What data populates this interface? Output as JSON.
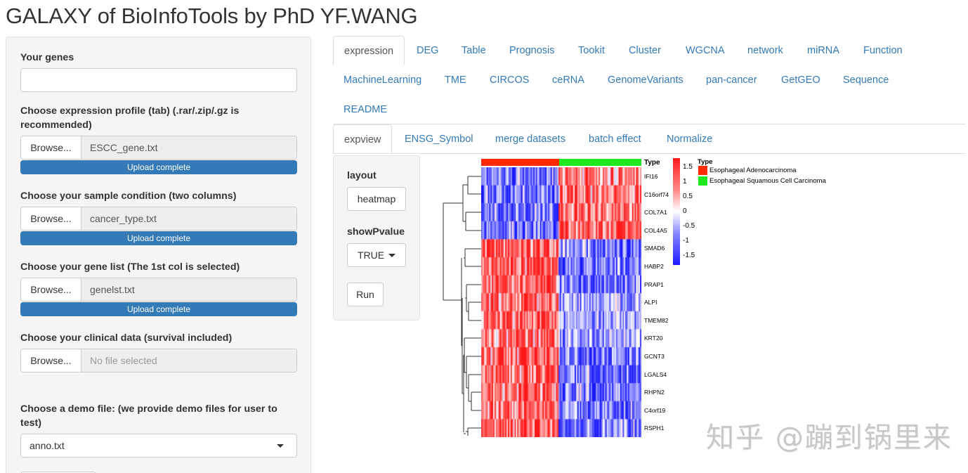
{
  "app": {
    "title": "GALAXY of BioInfoTools by PhD YF.WANG"
  },
  "sidebar": {
    "genes_label": "Your genes",
    "genes_value": "",
    "expression": {
      "label": "Choose expression profile (tab) (.rar/.zip/.gz is recommended)",
      "browse": "Browse...",
      "file": "ESCC_gene.txt",
      "status": "Upload complete"
    },
    "condition": {
      "label": "Choose your sample condition (two columns)",
      "browse": "Browse...",
      "file": "cancer_type.txt",
      "status": "Upload complete"
    },
    "genelist": {
      "label": "Choose your gene list (The 1st col is selected)",
      "browse": "Browse...",
      "file": "genelst.txt",
      "status": "Upload complete"
    },
    "clinical": {
      "label": "Choose your clinical data (survival included)",
      "browse": "Browse...",
      "file": "No file selected"
    },
    "demo": {
      "label": "Choose a demo file: (we provide demo files for user to test)",
      "selected": "anno.txt"
    }
  },
  "tabs": {
    "main": [
      {
        "label": "expression",
        "active": true
      },
      {
        "label": "DEG"
      },
      {
        "label": "Table"
      },
      {
        "label": "Prognosis"
      },
      {
        "label": "Tookit"
      },
      {
        "label": "Cluster"
      },
      {
        "label": "WGCNA"
      },
      {
        "label": "network"
      },
      {
        "label": "miRNA"
      },
      {
        "label": "Function"
      },
      {
        "label": "MachineLearning"
      },
      {
        "label": "TME"
      },
      {
        "label": "CIRCOS"
      },
      {
        "label": "ceRNA"
      },
      {
        "label": "GenomeVariants"
      },
      {
        "label": "pan-cancer"
      },
      {
        "label": "GetGEO"
      },
      {
        "label": "Sequence"
      },
      {
        "label": "README"
      }
    ],
    "sub": [
      {
        "label": "expview",
        "active": true
      },
      {
        "label": "ENSG_Symbol"
      },
      {
        "label": "merge datasets"
      },
      {
        "label": "batch effect"
      },
      {
        "label": "Normalize"
      }
    ]
  },
  "controls": {
    "layout_label": "layout",
    "layout_value": "heatmap",
    "pvalue_label": "showPvalue",
    "pvalue_value": "TRUE",
    "run_label": "Run"
  },
  "heatmap": {
    "annotation_title": "Type",
    "genes": [
      "IFI16",
      "C16orf74",
      "COL7A1",
      "COL4A5",
      "SMAD6",
      "HABP2",
      "PRAP1",
      "ALPI",
      "TMEM82",
      "KRT20",
      "GCNT3",
      "LGALS4",
      "RHPN2",
      "C4orf19",
      "RSPH1"
    ],
    "colorbar_ticks": [
      "1.5",
      "1",
      "0.5",
      "0",
      "-0.5",
      "-1",
      "-1.5"
    ],
    "legend_title": "Type",
    "legend": [
      {
        "label": "Esophageal Adenocarcinoma",
        "color": "#ff2a00"
      },
      {
        "label": "Esophageal Squamous Cell Carcinoma",
        "color": "#1ee81e"
      }
    ],
    "colors": {
      "high": "#ff1a1a",
      "mid": "#ffffff",
      "low": "#1a1aff"
    }
  },
  "watermark": "知乎 @蹦到锅里来"
}
